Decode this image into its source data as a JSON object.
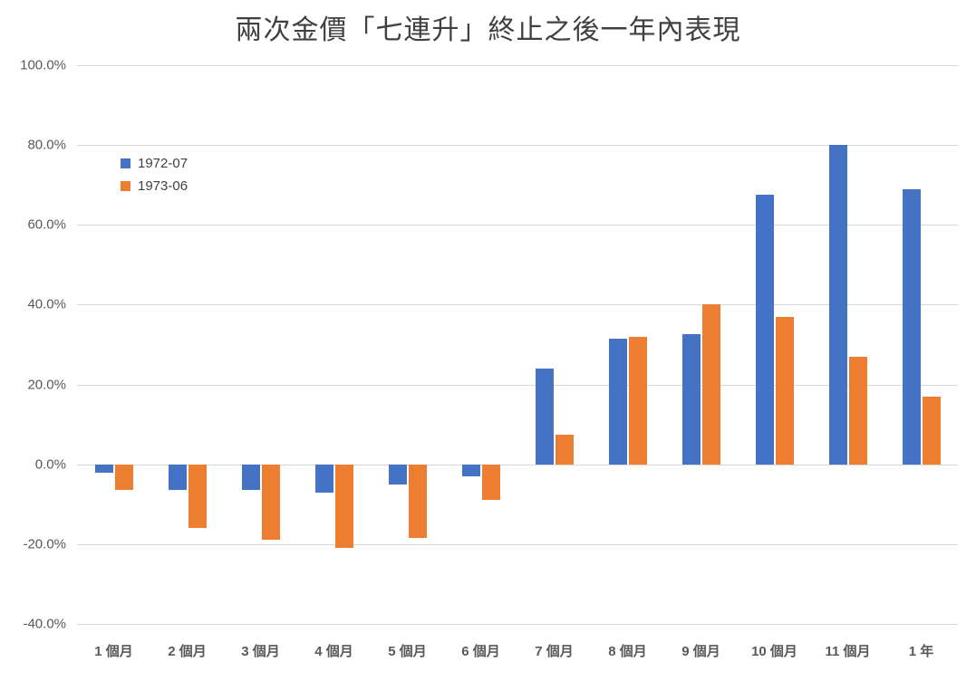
{
  "chart_data": {
    "type": "bar",
    "title": "兩次金價「七連升」終止之後一年內表現",
    "xlabel": "",
    "ylabel": "",
    "categories": [
      "1 個月",
      "2 個月",
      "3 個月",
      "4 個月",
      "5 個月",
      "6 個月",
      "7 個月",
      "8 個月",
      "9 個月",
      "10 個月",
      "11 個月",
      "1 年"
    ],
    "series": [
      {
        "name": "1972-07",
        "color": "#4472C4",
        "values": [
          -2,
          -6.5,
          -6.5,
          -7,
          -5,
          -3,
          24,
          31.5,
          32.5,
          67.5,
          80,
          69
        ]
      },
      {
        "name": "1973-06",
        "color": "#ED7D31",
        "values": [
          -6.5,
          -16,
          -19,
          -21,
          -18.5,
          -9,
          7.5,
          32,
          40,
          37,
          27,
          17
        ]
      }
    ],
    "ylim": [
      -40,
      100
    ],
    "yticks": [
      {
        "value": 100,
        "label": "100.0%"
      },
      {
        "value": 80,
        "label": "80.0%"
      },
      {
        "value": 60,
        "label": "60.0%"
      },
      {
        "value": 40,
        "label": "40.0%"
      },
      {
        "value": 20,
        "label": "20.0%"
      },
      {
        "value": 0,
        "label": "0.0%"
      },
      {
        "value": -20,
        "label": "-20.0%"
      },
      {
        "value": -40,
        "label": "-40.0%"
      }
    ],
    "grid": true,
    "legend_position": "upper-left-inside",
    "colors": {
      "gridline": "#D9D9D9",
      "axis_text": "#595959",
      "title_text": "#404040",
      "legend_text": "#404040",
      "background": "#FFFFFF"
    }
  }
}
